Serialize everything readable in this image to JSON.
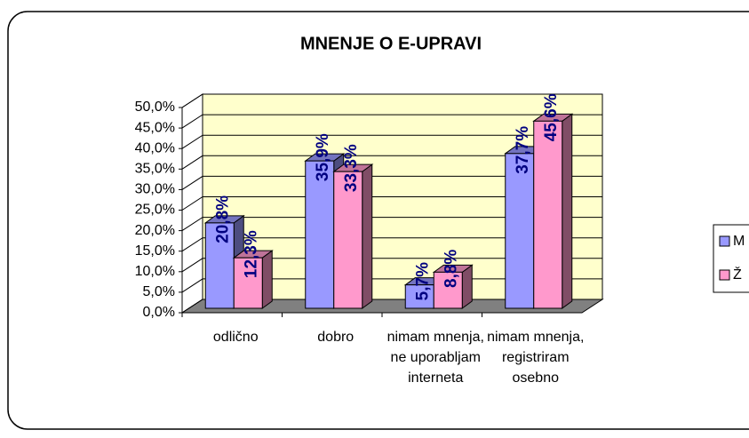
{
  "chart_data": {
    "type": "bar3d",
    "title": "MNENJE O E-UPRAVI",
    "categories": [
      "odlično",
      "dobro",
      "nimam mnenja, ne uporabljam interneta",
      "nimam mnenja, registriram osebno"
    ],
    "series": [
      {
        "name": "M",
        "color": "#9999ff",
        "values": [
          20.8,
          35.9,
          5.7,
          37.7
        ],
        "value_labels": [
          "20,8%",
          "35,9%",
          "5,7%",
          "37,7%"
        ]
      },
      {
        "name": "Ž",
        "color": "#ff99cc",
        "values": [
          12.3,
          33.3,
          8.8,
          45.6
        ],
        "value_labels": [
          "12,3%",
          "33,3%",
          "8,8%",
          "45,6%"
        ]
      }
    ],
    "ylim": [
      0,
      50
    ],
    "yticks": [
      {
        "value": 0,
        "label": "0,0%"
      },
      {
        "value": 5,
        "label": "5,0%"
      },
      {
        "value": 10,
        "label": "10,0%"
      },
      {
        "value": 15,
        "label": "15,0%"
      },
      {
        "value": 20,
        "label": "20,0%"
      },
      {
        "value": 25,
        "label": "25,0%"
      },
      {
        "value": 30,
        "label": "30,0%"
      },
      {
        "value": 35,
        "label": "35,0%"
      },
      {
        "value": 40,
        "label": "40,0%"
      },
      {
        "value": 45,
        "label": "45,0%"
      },
      {
        "value": 50,
        "label": "50,0%"
      }
    ],
    "grid": true,
    "legend": "right"
  }
}
